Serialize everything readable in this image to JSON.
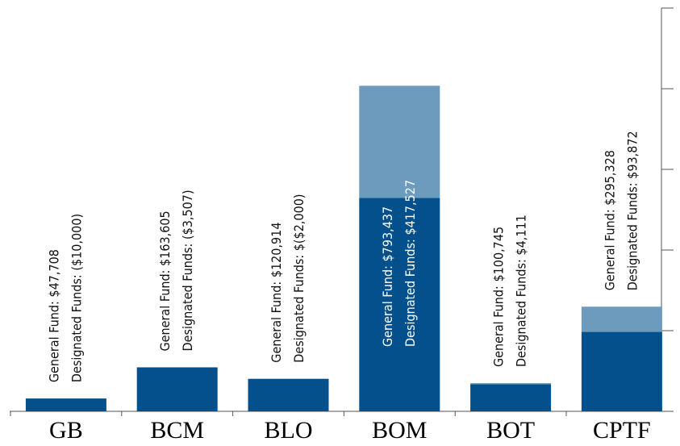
{
  "chart_data": {
    "type": "stacked_bar",
    "categories": [
      "GB",
      "BCM",
      "BLO",
      "BOM",
      "BOT",
      "CPTF"
    ],
    "series": [
      {
        "name": "General Fund",
        "color": "#04508c",
        "values": [
          47708,
          163605,
          120914,
          793437,
          100745,
          295328
        ],
        "value_labels": [
          "General Fund: $47,708",
          "General Fund: $163,605",
          "General Fund: $120,914",
          "General Fund: $793,437",
          "General Fund: $100,745",
          "General Fund: $295,328"
        ]
      },
      {
        "name": "Designated Funds",
        "color": "#6c9bbd",
        "values": [
          -10000,
          -3507,
          -2000,
          417527,
          4111,
          93872
        ],
        "value_labels": [
          "Designated Funds: ($10,000)",
          "Designated Funds: ($3,507)",
          "Designated Funds: $($2,000)",
          "Designated Funds: $417,527",
          "Designated Funds: $4,111",
          "Designated Funds: $93,872"
        ]
      }
    ],
    "ylim": [
      0,
      1500000
    ],
    "yticks": [
      0,
      300000,
      600000,
      900000,
      1200000,
      1500000
    ]
  }
}
